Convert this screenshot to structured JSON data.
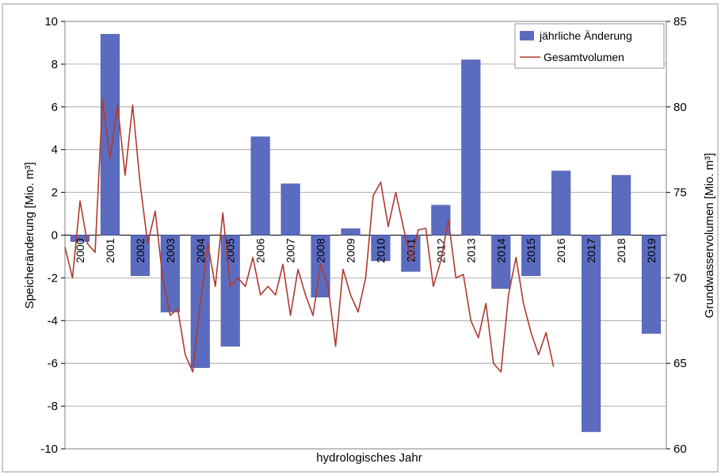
{
  "chart_data": {
    "type": "bar+line",
    "title": "",
    "xlabel": "hydrologisches Jahr",
    "ylabel_left": "Speicheränderung [Mio. m³]",
    "ylabel_right": "Grundwasservolumen [Mio. m³]",
    "ylim_left": [
      -10,
      10
    ],
    "ylim_right": [
      60,
      85
    ],
    "yticks_left": [
      "10",
      "8",
      "6",
      "4",
      "2",
      "0",
      "-2",
      "-4",
      "-6",
      "-8",
      "-10"
    ],
    "yticks_right": [
      "85",
      "80",
      "75",
      "70",
      "65",
      "60"
    ],
    "grid": true,
    "legend_position": "top-right",
    "categories": [
      "2000",
      "2001",
      "2002",
      "2003",
      "2004",
      "2005",
      "2006",
      "2007",
      "2008",
      "2009",
      "2010",
      "2011",
      "2012",
      "2013",
      "2014",
      "2015",
      "2016",
      "2017",
      "2018",
      "2019"
    ],
    "series": [
      {
        "name": "jährliche Änderung",
        "type": "bar",
        "color": "#5b6cc0",
        "axis": "left",
        "values": [
          -0.3,
          9.4,
          -1.9,
          -3.6,
          -6.2,
          -5.2,
          4.6,
          2.4,
          -2.9,
          0.3,
          -1.2,
          -1.7,
          1.4,
          8.2,
          -2.5,
          -1.9,
          3.0,
          -9.2,
          2.8,
          -4.6
        ]
      },
      {
        "name": "Gesamtvolumen",
        "type": "line",
        "color": "#b03a2e",
        "axis": "right",
        "x": [
          0.0,
          0.25,
          0.5,
          0.75,
          1.0,
          1.25,
          1.5,
          1.75,
          2.0,
          2.25,
          2.5,
          2.75,
          3.0,
          3.25,
          3.5,
          3.75,
          4.0,
          4.25,
          4.5,
          4.75,
          5.0,
          5.25,
          5.5,
          5.75,
          6.0,
          6.25,
          6.5,
          6.75,
          7.0,
          7.25,
          7.5,
          7.75,
          8.0,
          8.25,
          8.5,
          8.75,
          9.0,
          9.25,
          9.5,
          9.75,
          10.0,
          10.25,
          10.5,
          10.75,
          11.0,
          11.25,
          11.5,
          11.75,
          12.0,
          12.25,
          12.5,
          12.75,
          13.0,
          13.25,
          13.5,
          13.75,
          14.0,
          14.25,
          14.5,
          14.75,
          15.0,
          15.25,
          15.5,
          15.75,
          16.0,
          16.25,
          16.5,
          16.75,
          17.0,
          17.25,
          17.5,
          17.75,
          18.0,
          18.25,
          18.5,
          18.75,
          19.0,
          19.25,
          19.5,
          19.75,
          20.0
        ],
        "values": [
          71.8,
          70.0,
          74.5,
          72.0,
          71.5,
          80.4,
          77.0,
          80.1,
          76.0,
          80.1,
          75.5,
          72.0,
          73.9,
          70.0,
          67.8,
          68.2,
          65.5,
          64.5,
          68.5,
          72.0,
          69.5,
          73.8,
          69.5,
          70.0,
          69.5,
          71.2,
          69.0,
          69.5,
          69.0,
          70.8,
          67.8,
          70.5,
          69.0,
          67.8,
          70.8,
          69.5,
          66.0,
          70.5,
          69.0,
          68.0,
          70.0,
          74.8,
          75.6,
          73.0,
          75.0,
          73.0,
          71.0,
          72.8,
          72.9,
          69.5,
          71.0,
          73.4,
          70.0,
          70.2,
          67.5,
          66.5,
          68.5,
          65.0,
          64.5,
          69.0,
          71.2,
          68.5,
          66.8,
          65.5,
          66.8,
          64.8,
          null,
          null,
          null,
          null,
          null,
          null,
          null,
          null,
          null,
          null,
          null,
          null,
          null,
          null,
          null
        ]
      }
    ]
  }
}
